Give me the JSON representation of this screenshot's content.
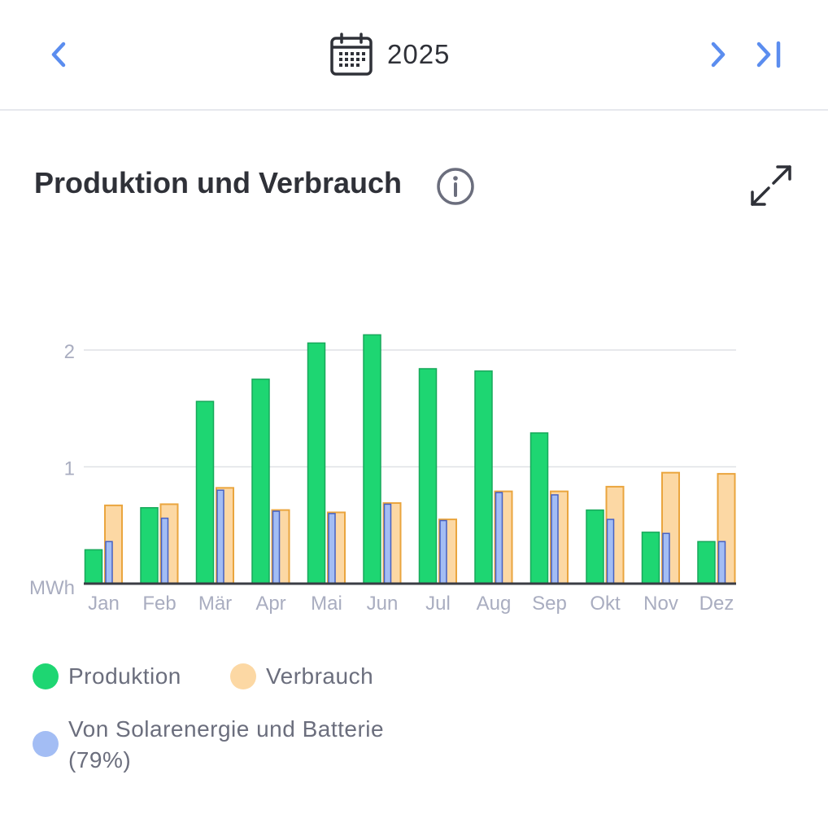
{
  "header": {
    "period_label": "2025",
    "prev_icon": "chevron-left-icon",
    "next_icon": "chevron-right-icon",
    "last_icon": "skip-to-end-icon",
    "calendar_icon": "calendar-icon",
    "accent_color": "#5b8def"
  },
  "card": {
    "title": "Produktion und Verbrauch",
    "info_icon": "info-icon",
    "expand_icon": "expand-icon"
  },
  "legend": {
    "production_label": "Produktion",
    "consumption_label": "Verbrauch",
    "self_supply_label_line1": "Von Solarenergie und Batterie",
    "self_supply_label_line2": "(79%)"
  },
  "chart_data": {
    "type": "bar",
    "ylabel": "MWh",
    "ylim": [
      0,
      2.4
    ],
    "yticks": [
      1,
      2
    ],
    "grid": true,
    "legend_position": "bottom",
    "categories": [
      "Jan",
      "Feb",
      "Mär",
      "Apr",
      "Mai",
      "Jun",
      "Jul",
      "Aug",
      "Sep",
      "Okt",
      "Nov",
      "Dez"
    ],
    "series": [
      {
        "name": "Produktion",
        "color": "#1ed672",
        "values": [
          0.29,
          0.65,
          1.56,
          1.75,
          2.06,
          2.13,
          1.84,
          1.82,
          1.29,
          0.63,
          0.44,
          0.36
        ]
      },
      {
        "name": "Verbrauch",
        "color": "#fcd8a4",
        "values": [
          0.67,
          0.68,
          0.82,
          0.63,
          0.61,
          0.69,
          0.55,
          0.79,
          0.79,
          0.83,
          0.95,
          0.94
        ]
      },
      {
        "name": "Von Solarenergie und Batterie",
        "color": "#a3bdf4",
        "values": [
          0.36,
          0.56,
          0.8,
          0.62,
          0.6,
          0.68,
          0.54,
          0.78,
          0.76,
          0.55,
          0.43,
          0.36
        ]
      }
    ]
  }
}
